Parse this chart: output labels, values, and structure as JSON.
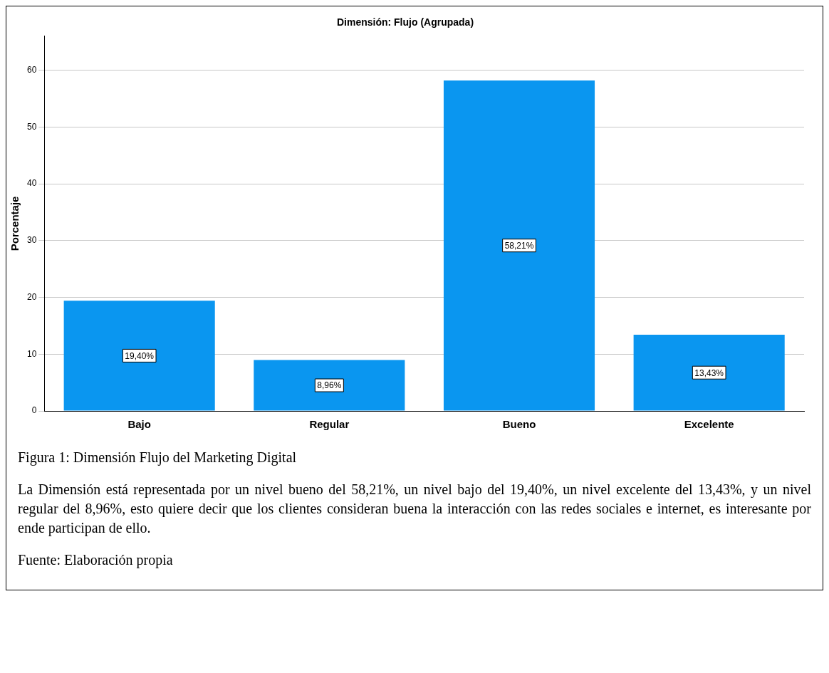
{
  "chart_data": {
    "type": "bar",
    "title": "Dimensión: Flujo (Agrupada)",
    "ylabel": "Porcentaje",
    "categories": [
      "Bajo",
      "Regular",
      "Bueno",
      "Excelente"
    ],
    "values": [
      19.4,
      8.96,
      58.21,
      13.43
    ],
    "value_labels": [
      "19,40%",
      "8,96%",
      "58,21%",
      "13,43%"
    ],
    "color": "#0a96f0",
    "ylim": [
      0,
      66
    ],
    "yticks": [
      0,
      10,
      20,
      30,
      40,
      50,
      60
    ],
    "grid": "y",
    "legend": false,
    "annotations": [
      "Figura 1: Dimensión Flujo del Marketing Digital",
      "La Dimensión está representada por un nivel bueno del 58,21%, un nivel bajo del 19,40%, un nivel excelente del 13,43%, y un nivel regular del 8,96%, esto quiere decir que los clientes consideran buena la interacción con las redes sociales e internet, es interesante por ende participan de ello.",
      "Fuente: Elaboración propia"
    ]
  }
}
